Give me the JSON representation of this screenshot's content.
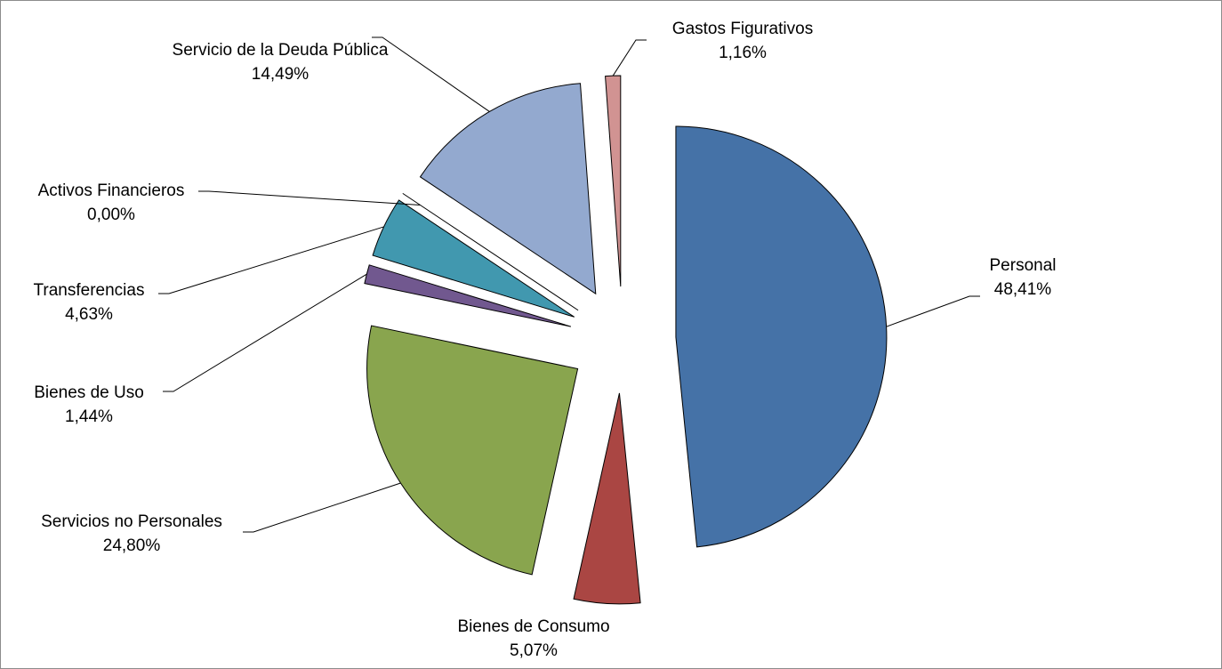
{
  "chart_data": {
    "type": "pie",
    "categories": [
      "Personal",
      "Bienes de Consumo",
      "Servicios no Personales",
      "Bienes de Uso",
      "Transferencias",
      "Activos Financieros",
      "Servicio de la Deuda Pública",
      "Gastos Figurativos"
    ],
    "values": [
      48.41,
      5.07,
      24.8,
      1.44,
      4.63,
      0.0,
      14.49,
      1.16
    ],
    "value_labels": [
      "48,41%",
      "5,07%",
      "24,80%",
      "1,44%",
      "4,63%",
      "0,00%",
      "14,49%",
      "1,16%"
    ],
    "colors": [
      "#4572a7",
      "#aa4643",
      "#89a54e",
      "#71588f",
      "#4198af",
      "#db843d",
      "#93a9cf",
      "#d19392"
    ]
  }
}
